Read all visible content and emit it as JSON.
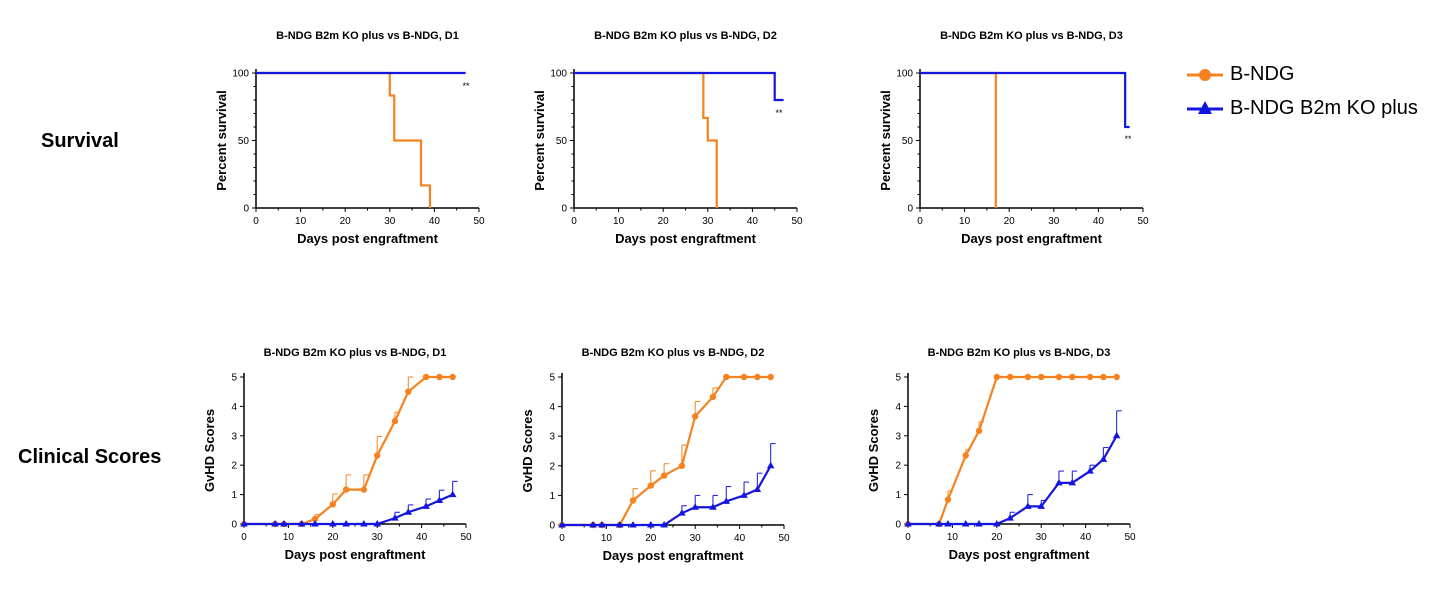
{
  "colors": {
    "bndg": "#f5821f",
    "ko": "#1515e0"
  },
  "row_labels": {
    "survival": "Survival",
    "clinical": "Clinical Scores"
  },
  "legend": [
    {
      "name": "B-NDG",
      "color": "#f5821f",
      "marker": "circle"
    },
    {
      "name": "B-NDG B2m KO plus",
      "color": "#1515e0",
      "marker": "triangle"
    }
  ],
  "chart_data": [
    {
      "type": "line",
      "step": true,
      "title": "B-NDG B2m KO plus vs B-NDG, D1",
      "xlabel": "Days post engraftment",
      "ylabel": "Percent survival",
      "xlim": [
        0,
        50
      ],
      "ylim": [
        0,
        100
      ],
      "xticks": [
        0,
        10,
        20,
        30,
        40,
        50
      ],
      "yticks": [
        0,
        50,
        100
      ],
      "annotation": "**",
      "series": [
        {
          "name": "B-NDG",
          "x": [
            0,
            30,
            31,
            37,
            39
          ],
          "y": [
            100,
            83.3,
            50,
            16.7,
            0
          ]
        },
        {
          "name": "B-NDG B2m KO plus",
          "x": [
            0,
            47
          ],
          "y": [
            100,
            100
          ]
        }
      ]
    },
    {
      "type": "line",
      "step": true,
      "title": "B-NDG B2m KO plus vs B-NDG, D2",
      "xlabel": "Days post engraftment",
      "ylabel": "Percent survival",
      "xlim": [
        0,
        50
      ],
      "ylim": [
        0,
        100
      ],
      "xticks": [
        0,
        10,
        20,
        30,
        40,
        50
      ],
      "yticks": [
        0,
        50,
        100
      ],
      "annotation": "**",
      "series": [
        {
          "name": "B-NDG",
          "x": [
            0,
            29,
            30,
            32
          ],
          "y": [
            100,
            66.7,
            50,
            0
          ]
        },
        {
          "name": "B-NDG B2m KO plus",
          "x": [
            0,
            45,
            47
          ],
          "y": [
            100,
            80,
            80
          ]
        }
      ]
    },
    {
      "type": "line",
      "step": true,
      "title": "B-NDG B2m KO plus vs B-NDG, D3",
      "xlabel": "Days post engraftment",
      "ylabel": "Percent survival",
      "xlim": [
        0,
        50
      ],
      "ylim": [
        0,
        100
      ],
      "xticks": [
        0,
        10,
        20,
        30,
        40,
        50
      ],
      "yticks": [
        0,
        50,
        100
      ],
      "annotation": "**",
      "series": [
        {
          "name": "B-NDG",
          "x": [
            0,
            17
          ],
          "y": [
            100,
            0
          ]
        },
        {
          "name": "B-NDG B2m KO plus",
          "x": [
            0,
            46,
            47
          ],
          "y": [
            100,
            60,
            60
          ]
        }
      ]
    },
    {
      "type": "line",
      "title": "B-NDG B2m KO plus vs B-NDG, D1",
      "xlabel": "Days post engraftment",
      "ylabel": "GvHD Scores",
      "xlim": [
        0,
        50
      ],
      "ylim": [
        0,
        5
      ],
      "xticks": [
        0,
        10,
        20,
        30,
        40,
        50
      ],
      "yticks": [
        0,
        1,
        2,
        3,
        4,
        5
      ],
      "series": [
        {
          "name": "B-NDG",
          "marker": "circle",
          "x": [
            0,
            7,
            9,
            13,
            16,
            20,
            23,
            27,
            30,
            34,
            37,
            41,
            44,
            47
          ],
          "y": [
            0,
            0,
            0,
            0,
            0.17,
            0.67,
            1.17,
            1.17,
            2.33,
            3.5,
            4.5,
            5,
            5,
            5
          ],
          "err": [
            0,
            0,
            0,
            0,
            0.15,
            0.35,
            0.5,
            0.5,
            0.65,
            0.3,
            0.5,
            0,
            0,
            0
          ]
        },
        {
          "name": "B-NDG B2m KO plus",
          "marker": "triangle",
          "x": [
            0,
            7,
            9,
            13,
            16,
            20,
            23,
            27,
            30,
            34,
            37,
            41,
            44,
            47
          ],
          "y": [
            0,
            0,
            0,
            0,
            0,
            0,
            0,
            0,
            0,
            0.2,
            0.4,
            0.6,
            0.8,
            1.0
          ],
          "err": [
            0,
            0,
            0,
            0,
            0,
            0,
            0,
            0,
            0,
            0.2,
            0.25,
            0.25,
            0.35,
            0.45
          ]
        }
      ]
    },
    {
      "type": "line",
      "title": "B-NDG B2m KO plus vs B-NDG, D2",
      "xlabel": "Days post engraftment",
      "ylabel": "GvHD Scores",
      "xlim": [
        0,
        50
      ],
      "ylim": [
        0,
        5
      ],
      "xticks": [
        0,
        10,
        20,
        30,
        40,
        50
      ],
      "yticks": [
        0,
        1,
        2,
        3,
        4,
        5
      ],
      "series": [
        {
          "name": "B-NDG",
          "marker": "circle",
          "x": [
            0,
            7,
            9,
            13,
            16,
            20,
            23,
            27,
            30,
            34,
            37,
            41,
            44,
            47
          ],
          "y": [
            0,
            0,
            0,
            0,
            0.83,
            1.33,
            1.67,
            2.0,
            3.67,
            4.33,
            5,
            5,
            5,
            5
          ],
          "err": [
            0,
            0,
            0,
            0,
            0.4,
            0.5,
            0.4,
            0.7,
            0.5,
            0.3,
            0,
            0,
            0,
            0
          ]
        },
        {
          "name": "B-NDG B2m KO plus",
          "marker": "triangle",
          "x": [
            0,
            7,
            9,
            13,
            16,
            20,
            23,
            27,
            30,
            34,
            37,
            41,
            44,
            47
          ],
          "y": [
            0,
            0,
            0,
            0,
            0,
            0,
            0,
            0.4,
            0.6,
            0.6,
            0.8,
            1.0,
            1.2,
            2.0
          ],
          "err": [
            0,
            0,
            0,
            0,
            0,
            0,
            0,
            0.25,
            0.4,
            0.4,
            0.5,
            0.45,
            0.55,
            0.75
          ]
        }
      ]
    },
    {
      "type": "line",
      "title": "B-NDG B2m KO plus vs B-NDG, D3",
      "xlabel": "Days post engraftment",
      "ylabel": "GvHD Scores",
      "xlim": [
        0,
        50
      ],
      "ylim": [
        0,
        5
      ],
      "xticks": [
        0,
        10,
        20,
        30,
        40,
        50
      ],
      "yticks": [
        0,
        1,
        2,
        3,
        4,
        5
      ],
      "series": [
        {
          "name": "B-NDG",
          "marker": "circle",
          "x": [
            0,
            7,
            9,
            13,
            16,
            20,
            23,
            27,
            30,
            34,
            37,
            41,
            44,
            47
          ],
          "y": [
            0,
            0,
            0.83,
            2.33,
            3.17,
            5,
            5,
            5,
            5,
            5,
            5,
            5,
            5,
            5
          ],
          "err": [
            0,
            0,
            0.3,
            0.2,
            0.3,
            0,
            0,
            0,
            0,
            0,
            0,
            0,
            0,
            0
          ]
        },
        {
          "name": "B-NDG B2m KO plus",
          "marker": "triangle",
          "x": [
            0,
            7,
            9,
            13,
            16,
            20,
            23,
            27,
            30,
            34,
            37,
            41,
            44,
            47
          ],
          "y": [
            0,
            0,
            0,
            0,
            0,
            0,
            0.2,
            0.6,
            0.6,
            1.4,
            1.4,
            1.8,
            2.2,
            3.0
          ],
          "err": [
            0,
            0,
            0,
            0,
            0,
            0,
            0.2,
            0.4,
            0.2,
            0.4,
            0.4,
            0.2,
            0.4,
            0.85
          ]
        }
      ]
    }
  ]
}
